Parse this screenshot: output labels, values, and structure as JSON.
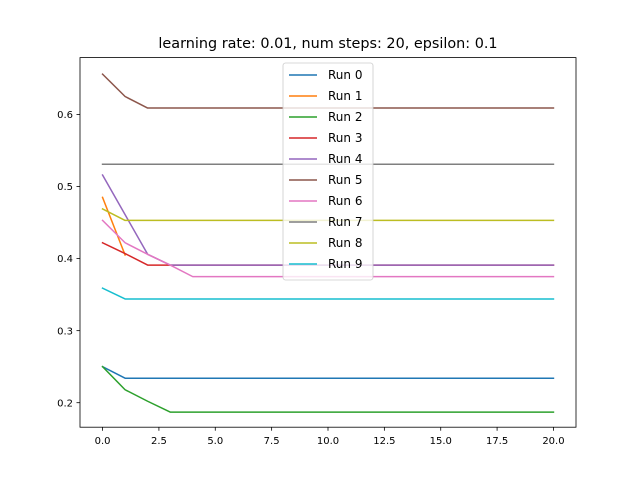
{
  "chart_data": {
    "type": "line",
    "title": "learning rate: 0.01, num steps: 20, epsilon: 0.1",
    "xlabel": "",
    "ylabel": "",
    "xlim": [
      -1.0,
      21.0
    ],
    "ylim": [
      0.166,
      0.679
    ],
    "xticks": [
      0.0,
      2.5,
      5.0,
      7.5,
      10.0,
      12.5,
      15.0,
      17.5,
      20.0
    ],
    "xtick_labels": [
      "0.0",
      "2.5",
      "5.0",
      "7.5",
      "10.0",
      "12.5",
      "15.0",
      "17.5",
      "20.0"
    ],
    "yticks": [
      0.2,
      0.3,
      0.4,
      0.5,
      0.6
    ],
    "ytick_labels": [
      "0.2",
      "0.3",
      "0.4",
      "0.5",
      "0.6"
    ],
    "grid": false,
    "legend_position": "upper-center",
    "series": [
      {
        "name": "Run 0",
        "color": "#1f77b4",
        "points": [
          [
            0,
            0.25
          ],
          [
            1,
            0.234
          ],
          [
            20,
            0.234
          ]
        ]
      },
      {
        "name": "Run 1",
        "color": "#ff7f0e",
        "points": [
          [
            0,
            0.485
          ],
          [
            1,
            0.405
          ]
        ]
      },
      {
        "name": "Run 2",
        "color": "#2ca02c",
        "points": [
          [
            0,
            0.25
          ],
          [
            1,
            0.218
          ],
          [
            2,
            0.202
          ],
          [
            3,
            0.187
          ],
          [
            20,
            0.187
          ]
        ]
      },
      {
        "name": "Run 3",
        "color": "#d62728",
        "points": [
          [
            0,
            0.422
          ],
          [
            1,
            0.407
          ],
          [
            2,
            0.391
          ],
          [
            20,
            0.391
          ]
        ]
      },
      {
        "name": "Run 4",
        "color": "#9467bd",
        "points": [
          [
            0,
            0.516
          ],
          [
            1,
            0.461
          ],
          [
            2,
            0.406
          ],
          [
            3,
            0.391
          ],
          [
            20,
            0.391
          ]
        ]
      },
      {
        "name": "Run 5",
        "color": "#8c564b",
        "points": [
          [
            0,
            0.656
          ],
          [
            1,
            0.625
          ],
          [
            2,
            0.609
          ],
          [
            20,
            0.609
          ]
        ]
      },
      {
        "name": "Run 6",
        "color": "#e377c2",
        "points": [
          [
            0,
            0.453
          ],
          [
            1,
            0.422
          ],
          [
            2,
            0.406
          ],
          [
            3,
            0.391
          ],
          [
            4,
            0.375
          ],
          [
            20,
            0.375
          ]
        ]
      },
      {
        "name": "Run 7",
        "color": "#7f7f7f",
        "points": [
          [
            0,
            0.531
          ],
          [
            20,
            0.531
          ]
        ]
      },
      {
        "name": "Run 8",
        "color": "#bcbd22",
        "points": [
          [
            0,
            0.469
          ],
          [
            1,
            0.453
          ],
          [
            20,
            0.453
          ]
        ]
      },
      {
        "name": "Run 9",
        "color": "#17becf",
        "points": [
          [
            0,
            0.359
          ],
          [
            1,
            0.344
          ],
          [
            20,
            0.344
          ]
        ]
      }
    ]
  }
}
